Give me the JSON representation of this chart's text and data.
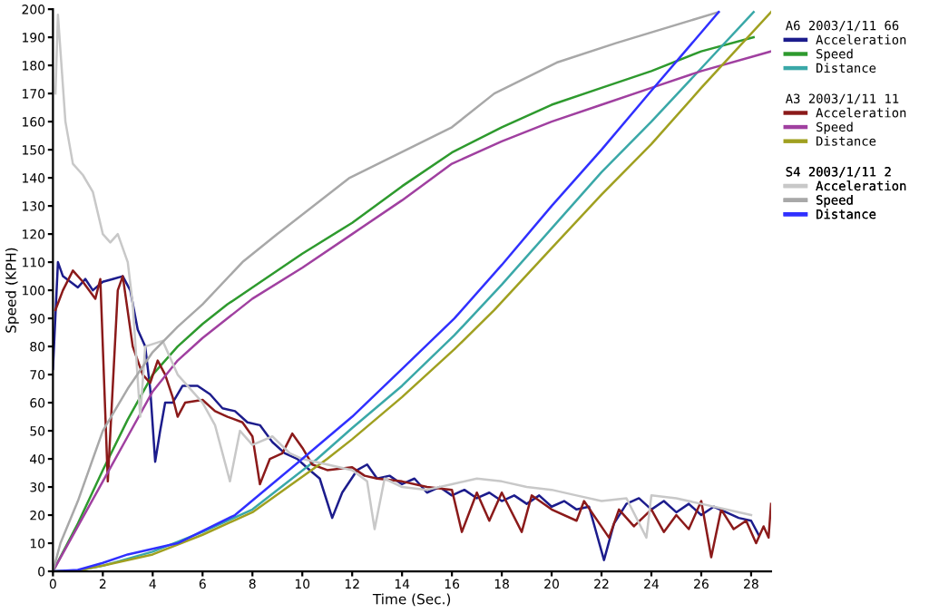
{
  "chart_data": {
    "type": "line",
    "xlabel": "Time (Sec.)",
    "ylabel": "Speed (KPH)",
    "annotations": [
      "A6 2003/1/11 66",
      "A3 2003/1/11 11",
      "S4 2003/1/11 2"
    ],
    "xlim": [
      0,
      28.8
    ],
    "ylim": [
      0,
      200
    ],
    "xticks": [
      0,
      2,
      4,
      6,
      8,
      10,
      12,
      14,
      16,
      18,
      20,
      22,
      24,
      26,
      28
    ],
    "yticks": [
      0,
      10,
      20,
      30,
      40,
      50,
      60,
      70,
      80,
      90,
      100,
      110,
      120,
      130,
      140,
      150,
      160,
      170,
      180,
      190,
      200
    ],
    "grid": false,
    "legend": "right",
    "marker": "none",
    "line_style": "solid",
    "series": [
      {
        "name": "Acceleration",
        "color": "#1c1c8c",
        "x": [
          0,
          0.2,
          0.4,
          0.7,
          1,
          1.3,
          1.6,
          2,
          2.4,
          2.8,
          3.1,
          3.4,
          3.7,
          3.9,
          4.1,
          4.3,
          4.5,
          4.8,
          5.2,
          5.8,
          6.3,
          6.8,
          7.3,
          7.8,
          8.3,
          8.8,
          9.3,
          9.8,
          10.3,
          10.7,
          11.2,
          11.6,
          12.2,
          12.6,
          13,
          13.5,
          14,
          14.5,
          15,
          15.5,
          16,
          16.5,
          17,
          17.5,
          18,
          18.5,
          19,
          19.5,
          20,
          20.5,
          21,
          21.5,
          22.1,
          22.5,
          23,
          23.5,
          24,
          24.5,
          25,
          25.5,
          26,
          26.5,
          27,
          27.5,
          28,
          28.3
        ],
        "values": [
          72,
          110,
          105,
          103,
          101,
          104,
          100,
          103,
          104,
          105,
          100,
          86,
          80,
          65,
          39,
          50,
          60,
          60,
          66,
          66,
          63,
          58,
          57,
          53,
          52,
          46,
          42,
          40,
          36,
          33,
          19,
          28,
          36,
          38,
          33,
          34,
          31,
          33,
          28,
          30,
          27,
          29,
          26,
          28,
          25,
          27,
          24,
          27,
          23,
          25,
          22,
          23,
          4,
          17,
          24,
          26,
          22,
          25,
          21,
          24,
          20,
          23,
          21,
          19,
          18,
          13
        ]
      },
      {
        "name": "Speed",
        "color": "#2e9a2e",
        "x": [
          0,
          1,
          2,
          3,
          4,
          5,
          6,
          7,
          8,
          10,
          12,
          14,
          16,
          18,
          20,
          22,
          24,
          26,
          28.1
        ],
        "values": [
          0,
          17,
          36,
          54,
          70,
          80,
          88,
          95,
          101,
          113,
          124,
          137,
          149,
          158,
          166,
          172,
          178,
          185,
          190
        ]
      },
      {
        "name": "Distance",
        "color": "#3aa8a8",
        "x": [
          0,
          1,
          2,
          4,
          6,
          8,
          10.6,
          12,
          14,
          16.1,
          18,
          20,
          22,
          24,
          26,
          28.1
        ],
        "values": [
          0,
          0.3,
          2,
          7,
          14,
          22,
          40,
          51,
          66,
          84,
          102,
          122,
          142,
          160,
          179,
          199
        ]
      },
      {
        "name": "Acceleration",
        "color": "#8b1a1a",
        "x": [
          0.1,
          0.4,
          0.8,
          1.2,
          1.7,
          1.9,
          2.2,
          2.6,
          2.8,
          3.2,
          3.6,
          3.9,
          4.2,
          4.5,
          4.8,
          5.0,
          5.3,
          6,
          6.5,
          7,
          7.6,
          8.0,
          8.3,
          8.7,
          9.2,
          9.6,
          10,
          10.4,
          11,
          12,
          12.5,
          13,
          14,
          15,
          16,
          16.4,
          17,
          17.5,
          18,
          18.8,
          19.2,
          20,
          21,
          21.3,
          22.3,
          22.7,
          23.3,
          24,
          24.5,
          25,
          25.5,
          26.0,
          26.4,
          26.8,
          27.3,
          27.8,
          28.2,
          28.5,
          28.7,
          28.8
        ],
        "values": [
          93,
          100,
          107,
          103,
          97,
          104,
          32,
          100,
          105,
          80,
          70,
          67,
          75,
          70,
          62,
          55,
          60,
          61,
          57,
          55,
          53,
          48,
          31,
          40,
          42,
          49,
          44,
          38,
          36,
          37,
          34,
          33,
          32,
          30,
          29,
          14,
          28,
          18,
          28,
          14,
          27,
          22,
          18,
          25,
          12,
          22,
          16,
          22,
          14,
          20,
          15,
          25,
          5,
          22,
          15,
          18,
          10,
          16,
          12,
          24
        ]
      },
      {
        "name": "Speed",
        "color": "#a040a0",
        "x": [
          0,
          1,
          2,
          3,
          4,
          5,
          6,
          7,
          8,
          10,
          12,
          14,
          16,
          18,
          20,
          22,
          24,
          26,
          28.8
        ],
        "values": [
          0,
          16,
          32,
          48,
          64,
          75,
          83,
          90,
          97,
          108,
          120,
          132,
          145,
          153,
          160,
          166,
          172,
          178,
          185
        ]
      },
      {
        "name": "Distance",
        "color": "#a0a020",
        "x": [
          0,
          1,
          2,
          4,
          6,
          8,
          11,
          12,
          14,
          16.1,
          17.7,
          20,
          22,
          24,
          26,
          28.8
        ],
        "values": [
          0,
          0.3,
          2,
          6,
          13,
          21,
          40,
          47,
          62,
          79,
          93,
          115,
          134,
          152,
          172,
          199
        ]
      },
      {
        "name": "Acceleration",
        "color": "#c8c8c8",
        "x": [
          0.1,
          0.2,
          0.5,
          0.8,
          1.2,
          1.6,
          2,
          2.3,
          2.6,
          3,
          3.2,
          3.5,
          3.7,
          4.4,
          5,
          6,
          6.5,
          7.1,
          7.5,
          8,
          8.8,
          9.5,
          10,
          11,
          12,
          12.6,
          12.9,
          13.3,
          14,
          15,
          16,
          17,
          18,
          19,
          20,
          21,
          22,
          23,
          23.8,
          24,
          25,
          26,
          27,
          28
        ],
        "values": [
          170,
          198,
          160,
          145,
          141,
          135,
          120,
          117,
          120,
          110,
          95,
          55,
          80,
          82,
          70,
          60,
          52,
          32,
          50,
          45,
          48,
          42,
          40,
          38,
          36,
          32,
          15,
          33,
          30,
          29,
          31,
          33,
          32,
          30,
          29,
          27,
          25,
          26,
          12,
          27,
          26,
          24,
          22,
          20
        ]
      },
      {
        "name": "Speed",
        "color": "#a8a8a8",
        "x": [
          0,
          0.3,
          1,
          2,
          3,
          4,
          5,
          6,
          7.6,
          9,
          11.9,
          16,
          17.7,
          20.2,
          22.6,
          26.7
        ],
        "values": [
          0,
          10,
          25,
          50,
          65,
          78,
          87,
          95,
          110,
          120,
          140,
          158,
          170,
          181,
          188,
          199
        ]
      },
      {
        "name": "Distance",
        "color": "#3030ff",
        "x": [
          0,
          1,
          2,
          3,
          5,
          7.3,
          10,
          12,
          14,
          16.1,
          18,
          20,
          22,
          24,
          26.7
        ],
        "values": [
          0,
          0.5,
          3,
          6,
          10,
          20,
          40,
          55,
          72,
          90,
          109,
          130,
          150,
          171,
          199
        ]
      }
    ]
  }
}
